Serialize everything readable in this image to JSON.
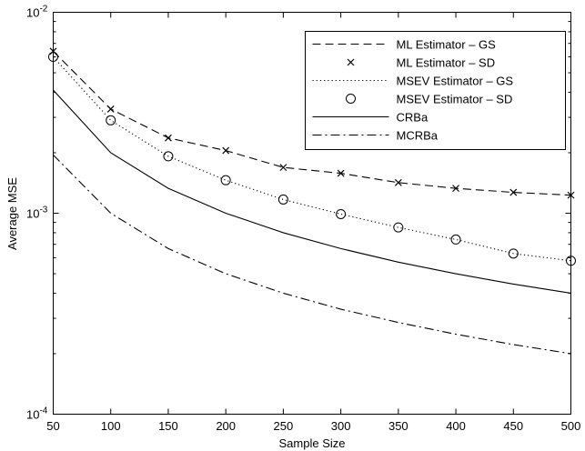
{
  "chart_data": {
    "type": "line",
    "xlabel": "Sample Size",
    "ylabel": "Average MSE",
    "xlim": [
      50,
      500
    ],
    "ylim": [
      0.0001,
      0.01
    ],
    "yscale": "log",
    "x_ticks": [
      "50",
      "100",
      "150",
      "200",
      "250",
      "300",
      "350",
      "400",
      "450",
      "500"
    ],
    "y_ticks": [
      {
        "value": 0.01,
        "base": "10",
        "exp": "-2"
      },
      {
        "value": 0.001,
        "base": "10",
        "exp": "-3"
      },
      {
        "value": 0.0001,
        "base": "10",
        "exp": "-4"
      }
    ],
    "grid": false,
    "legend_position": "top-right",
    "x": [
      50,
      100,
      150,
      200,
      250,
      300,
      350,
      400,
      450,
      500
    ],
    "series": [
      {
        "name": "ML Estimator – GS",
        "style": "dashed",
        "marker": "none",
        "values": [
          0.0064,
          0.0033,
          0.00237,
          0.00205,
          0.00169,
          0.00158,
          0.00142,
          0.00133,
          0.00127,
          0.00123
        ]
      },
      {
        "name": "ML Estimator – SD",
        "style": "none",
        "marker": "x",
        "values": [
          0.0064,
          0.0033,
          0.00237,
          0.00205,
          0.00169,
          0.00158,
          0.00142,
          0.00133,
          0.00127,
          0.00123
        ]
      },
      {
        "name": "MSEV Estimator – GS",
        "style": "dotted",
        "marker": "none",
        "values": [
          0.006,
          0.0029,
          0.00192,
          0.00146,
          0.00117,
          0.00099,
          0.00085,
          0.00074,
          0.00063,
          0.00058
        ]
      },
      {
        "name": "MSEV Estimator – SD",
        "style": "none",
        "marker": "o",
        "values": [
          0.006,
          0.0029,
          0.00192,
          0.00146,
          0.00117,
          0.00099,
          0.00085,
          0.00074,
          0.00063,
          0.00058
        ]
      },
      {
        "name": "CRBa",
        "style": "solid",
        "marker": "none",
        "values": [
          0.0041,
          0.002,
          0.00133,
          0.001,
          0.0008,
          0.000667,
          0.000571,
          0.0005,
          0.000444,
          0.0004
        ]
      },
      {
        "name": "MCRBa",
        "style": "dashdot",
        "marker": "none",
        "values": [
          0.00195,
          0.001,
          0.000667,
          0.0005,
          0.0004,
          0.000333,
          0.000286,
          0.00025,
          0.000222,
          0.0002
        ]
      }
    ]
  }
}
